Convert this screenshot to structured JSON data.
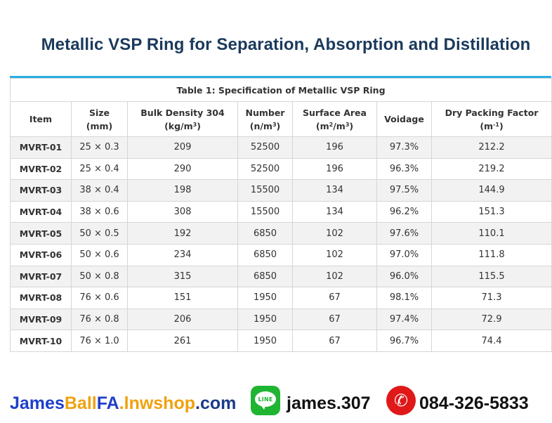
{
  "page": {
    "title": "Metallic VSP Ring for Separation, Absorption and Distillation"
  },
  "table": {
    "caption": "Table 1: Specification of Metallic VSP Ring",
    "headers": {
      "item": "Item",
      "size": [
        "Size",
        "(mm)"
      ],
      "bulk_density": [
        "Bulk Density 304",
        "(kg/m",
        "3",
        ")"
      ],
      "number": [
        "Number",
        "(n/m",
        "3",
        ")"
      ],
      "surface_area": [
        "Surface Area",
        "(m",
        "2",
        "/m",
        "3",
        ")"
      ],
      "voidage": "Voidage",
      "dry_packing_factor": [
        "Dry Packing Factor",
        "(m",
        "-1",
        ")"
      ]
    },
    "rows": [
      [
        "MVRT-01",
        "25 × 0.3",
        "209",
        "52500",
        "196",
        "97.3%",
        "212.2"
      ],
      [
        "MVRT-02",
        "25 × 0.4",
        "290",
        "52500",
        "196",
        "96.3%",
        "219.2"
      ],
      [
        "MVRT-03",
        "38 × 0.4",
        "198",
        "15500",
        "134",
        "97.5%",
        "144.9"
      ],
      [
        "MVRT-04",
        "38 × 0.6",
        "308",
        "15500",
        "134",
        "96.2%",
        "151.3"
      ],
      [
        "MVRT-05",
        "50 × 0.5",
        "192",
        "6850",
        "102",
        "97.6%",
        "110.1"
      ],
      [
        "MVRT-06",
        "50 × 0.6",
        "234",
        "6850",
        "102",
        "97.0%",
        "111.8"
      ],
      [
        "MVRT-07",
        "50 × 0.8",
        "315",
        "6850",
        "102",
        "96.0%",
        "115.5"
      ],
      [
        "MVRT-08",
        "76 × 0.6",
        "151",
        "1950",
        "67",
        "98.1%",
        "71.3"
      ],
      [
        "MVRT-09",
        "76 × 0.8",
        "206",
        "1950",
        "67",
        "97.4%",
        "72.9"
      ],
      [
        "MVRT-10",
        "76 × 1.0",
        "261",
        "1950",
        "67",
        "96.7%",
        "74.4"
      ]
    ]
  },
  "footer": {
    "shop_parts": [
      "James",
      "Ball",
      "FA",
      ".lnwshop",
      ".com"
    ],
    "line_icon_label": "LINE",
    "line_icon": "line-app-icon",
    "line_id": "james.307",
    "phone_icon": "phone-icon",
    "phone": "084-326-5833"
  },
  "colors": {
    "title": "#1b3a5c",
    "table_accent": "#29aee6",
    "shop_blue": "#1f3fc9",
    "shop_orange": "#f0a10f",
    "line_green": "#1fb432",
    "phone_red": "#e01818"
  }
}
